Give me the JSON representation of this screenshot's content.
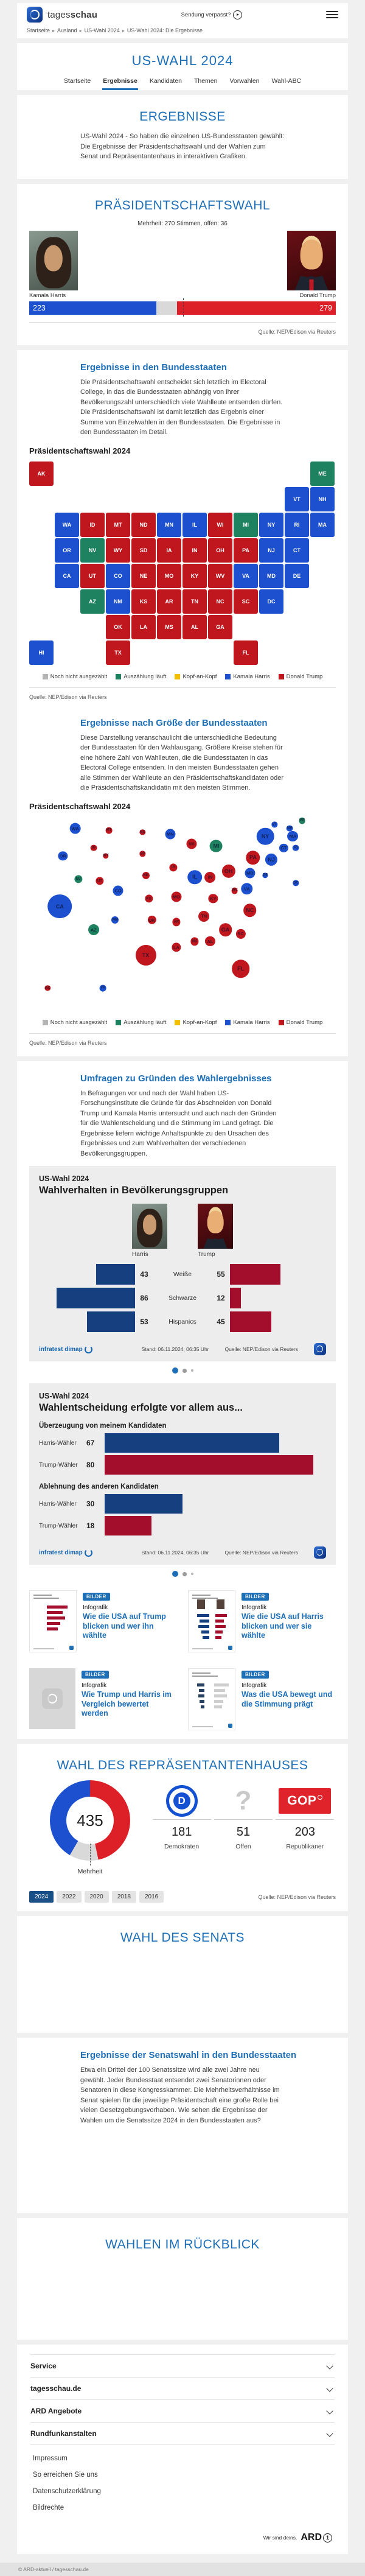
{
  "colors": {
    "dem": "#1c50cf",
    "rep": "#c0161e",
    "rep_bright": "#dd2028",
    "counting": "#1e8160",
    "open_gray": "#b5b5b5",
    "tie": "#f3c000",
    "chart_dem": "#153f7f",
    "chart_rep": "#a40e2d",
    "accent": "#1d6fb8"
  },
  "header": {
    "brand_light": "tages",
    "brand_bold": "schau",
    "link_label": "Sendung verpasst?"
  },
  "breadcrumb": [
    "Startseite",
    "Ausland",
    "US-Wahl 2024",
    "US-Wahl 2024: Die Ergebnisse"
  ],
  "hero": {
    "title": "US-WAHL 2024",
    "tabs": [
      {
        "label": "Startseite",
        "active": false
      },
      {
        "label": "Ergebnisse",
        "active": true
      },
      {
        "label": "Kandidaten",
        "active": false
      },
      {
        "label": "Themen",
        "active": false
      },
      {
        "label": "Vorwahlen",
        "active": false
      },
      {
        "label": "Wahl-ABC",
        "active": false
      }
    ]
  },
  "intro": {
    "title": "ERGEBNISSE",
    "text": "US-Wahl 2024 - So haben die einzelnen US-Bundesstaaten gewählt: Die Ergebnisse der Präsidentschaftswahl und der Wahlen zum Senat und Repräsentantenhaus in interaktiven Grafiken."
  },
  "president": {
    "title": "PRÄSIDENTSCHAFTSWAHL",
    "majority_label": "Mehrheit: 270 Stimmen, offen: 36",
    "harris_name": "Kamala Harris",
    "trump_name": "Donald Trump",
    "source": "Quelle: NEP/Edison via Reuters"
  },
  "states_section": {
    "heading": "Ergebnisse in den Bundesstaaten",
    "text": "Die Präsidentschaftswahl entscheidet sich letztlich im Electoral College, in das die Bundesstaaten abhängig von ihrer Bevölkerungszahl unterschiedlich viele Wahlleute entsenden dürfen. Die Präsidentschaftswahl ist damit letztlich das Ergebnis einer Summe von Einzelwahlen in den Bundesstaaten. Die Ergebnisse in den Bundesstaaten im Detail.",
    "chart_label": "Präsidentschaftswahl 2024",
    "source": "Quelle: NEP/Edison via Reuters"
  },
  "size_section": {
    "heading": "Ergebnisse nach Größe der Bundesstaaten",
    "text": "Diese Darstellung veranschaulicht die unterschiedliche Bedeutung der Bundesstaaten für den Wahlausgang. Größere Kreise stehen für eine höhere Zahl von Wahlleuten, die die Bundesstaaten in das Electoral College entsenden. In den meisten Bundesstaaten gehen alle Stimmen der Wahlleute an den Präsidentschaftskandidaten oder die Präsidentschaftskandidatin mit den meisten Stimmen.",
    "chart_label": "Präsidentschaftswahl 2024",
    "source": "Quelle: NEP/Edison via Reuters"
  },
  "legend": [
    {
      "label": "Noch nicht ausgezählt",
      "key": "open_gray"
    },
    {
      "label": "Auszählung läuft",
      "key": "counting"
    },
    {
      "label": "Kopf-an-Kopf",
      "key": "tie"
    },
    {
      "label": "Kamala Harris",
      "key": "dem"
    },
    {
      "label": "Donald Trump",
      "key": "rep"
    }
  ],
  "polls_section": {
    "heading": "Umfragen zu Gründen des Wahlergebnisses",
    "text": "In Befragungen vor und nach der Wahl haben US-Forschungsinstitute die Gründe für das Abschneiden von Donald Trump und Kamala Harris untersucht und auch nach den Gründen für die Wahlentscheidung und die Stimmung im Land gefragt. Die Ergebnisse liefern wichtige Anhaltspunkte zu den Ursachen des Ergebnisses und zum Wahlverhalten der verschiedenen Bevölkerungsgruppen."
  },
  "charts_common": {
    "kicker": "US-Wahl 2024",
    "brand": "infratest dimap",
    "stand": "Stand:  06.11.2024, 06:35 Uhr",
    "source": "Quelle: NEP/Edison via Reuters"
  },
  "teasers": [
    {
      "badge": "BILDER",
      "kicker": "Infografik",
      "title": "Wie die USA auf Trump blicken und wer ihn wählte",
      "thumb": "trump-profile"
    },
    {
      "badge": "BILDER",
      "kicker": "Infografik",
      "title": "Wie die USA auf Harris blicken und wer sie wählte",
      "thumb": "compare"
    },
    {
      "badge": "BILDER",
      "kicker": "Infografik",
      "title": "Wie Trump und Harris im Vergleich bewertet werden",
      "thumb": "placeholder"
    },
    {
      "badge": "BILDER",
      "kicker": "Infografik",
      "title": "Was die USA bewegt und die Stimmung prägt",
      "thumb": "mood"
    }
  ],
  "house": {
    "title": "WAHL DES REPRÄSENTANTENHAUSES",
    "majority_label": "Mehrheit",
    "years": [
      "2024",
      "2022",
      "2020",
      "2018",
      "2016"
    ],
    "active_year": "2024",
    "source": "Quelle: NEP/Edison via Reuters"
  },
  "senate": {
    "title": "WAHL DES SENATS"
  },
  "senate_states": {
    "heading": "Ergebnisse der Senatswahl in den Bundesstaaten",
    "text": "Etwa ein Drittel der 100 Senatssitze wird alle zwei Jahre neu gewählt. Jeder Bundesstaat entsendet zwei Senatorinnen oder Senatoren in diese Kongresskammer. Die Mehrheitsverhältnisse im Senat spielen für die jeweilige Präsidentschaft eine große Rolle bei vielen Gesetzgebungsvorhaben. Wie sehen die Ergebnisse der Wahlen um die Senatssitze 2024 in den Bundesstaaten aus?"
  },
  "review": {
    "title": "WAHLEN IM RÜCKBLICK"
  },
  "footer": {
    "accordions": [
      "Service",
      "tagesschau.de",
      "ARD Angebote",
      "Rundfunkanstalten"
    ],
    "links": [
      "Impressum",
      "So erreichen Sie uns",
      "Datenschutzerklärung",
      "Bildrechte"
    ],
    "tagline": "Wir sind deins.",
    "brand": "ARD",
    "copyright": "© ARD-aktuell / tagesschau.de"
  },
  "chart_data": {
    "electoral_college": {
      "type": "bar",
      "title": "Präsidentschaftswahl 2024",
      "series": [
        {
          "name": "Kamala Harris",
          "value": 223,
          "color": "dem"
        },
        {
          "name": "Donald Trump",
          "value": 279,
          "color": "rep_bright"
        }
      ],
      "open": 36,
      "total": 538,
      "majority": 270
    },
    "state_results": {
      "type": "map",
      "legend": [
        "Noch nicht ausgezählt",
        "Auszählung läuft",
        "Kopf-an-Kopf",
        "Kamala Harris",
        "Donald Trump"
      ],
      "states": [
        {
          "code": "AK",
          "ev": 3,
          "result": "rep",
          "grid": [
            0,
            0
          ],
          "pos": [
            6,
            88
          ]
        },
        {
          "code": "ME",
          "ev": 4,
          "result": "counting",
          "grid": [
            11,
            0
          ],
          "pos": [
            89,
            2
          ]
        },
        {
          "code": "VT",
          "ev": 3,
          "result": "dem",
          "grid": [
            10,
            1
          ],
          "pos": [
            80,
            4
          ]
        },
        {
          "code": "NH",
          "ev": 4,
          "result": "dem",
          "grid": [
            11,
            1
          ],
          "pos": [
            85,
            6
          ]
        },
        {
          "code": "WA",
          "ev": 12,
          "result": "dem",
          "grid": [
            1,
            2
          ],
          "pos": [
            15,
            6
          ]
        },
        {
          "code": "ID",
          "ev": 4,
          "result": "rep",
          "grid": [
            2,
            2
          ],
          "pos": [
            21,
            16
          ]
        },
        {
          "code": "MT",
          "ev": 4,
          "result": "rep",
          "grid": [
            3,
            2
          ],
          "pos": [
            26,
            7
          ]
        },
        {
          "code": "ND",
          "ev": 3,
          "result": "rep",
          "grid": [
            4,
            2
          ],
          "pos": [
            37,
            8
          ]
        },
        {
          "code": "MN",
          "ev": 10,
          "result": "dem",
          "grid": [
            5,
            2
          ],
          "pos": [
            46,
            9
          ]
        },
        {
          "code": "IL",
          "ev": 19,
          "result": "dem",
          "grid": [
            6,
            2
          ],
          "pos": [
            54,
            31
          ]
        },
        {
          "code": "WI",
          "ev": 10,
          "result": "rep",
          "grid": [
            7,
            2
          ],
          "pos": [
            53,
            14
          ]
        },
        {
          "code": "MI",
          "ev": 15,
          "result": "counting",
          "grid": [
            8,
            2
          ],
          "pos": [
            61,
            15
          ]
        },
        {
          "code": "NY",
          "ev": 28,
          "result": "dem",
          "grid": [
            9,
            2
          ],
          "pos": [
            77,
            10
          ]
        },
        {
          "code": "RI",
          "ev": 4,
          "result": "dem",
          "grid": [
            10,
            2
          ],
          "pos": [
            87,
            16
          ]
        },
        {
          "code": "MA",
          "ev": 11,
          "result": "dem",
          "grid": [
            11,
            2
          ],
          "pos": [
            86,
            10
          ]
        },
        {
          "code": "OR",
          "ev": 8,
          "result": "dem",
          "grid": [
            1,
            3
          ],
          "pos": [
            11,
            20
          ]
        },
        {
          "code": "NV",
          "ev": 6,
          "result": "counting",
          "grid": [
            2,
            3
          ],
          "pos": [
            16,
            32
          ]
        },
        {
          "code": "WY",
          "ev": 3,
          "result": "rep",
          "grid": [
            3,
            3
          ],
          "pos": [
            25,
            20
          ]
        },
        {
          "code": "SD",
          "ev": 3,
          "result": "rep",
          "grid": [
            4,
            3
          ],
          "pos": [
            37,
            19
          ]
        },
        {
          "code": "IA",
          "ev": 6,
          "result": "rep",
          "grid": [
            5,
            3
          ],
          "pos": [
            47,
            26
          ]
        },
        {
          "code": "IN",
          "ev": 11,
          "result": "rep",
          "grid": [
            6,
            3
          ],
          "pos": [
            59,
            31
          ]
        },
        {
          "code": "OH",
          "ev": 17,
          "result": "rep",
          "grid": [
            7,
            3
          ],
          "pos": [
            65,
            28
          ]
        },
        {
          "code": "PA",
          "ev": 19,
          "result": "rep",
          "grid": [
            8,
            3
          ],
          "pos": [
            73,
            21
          ]
        },
        {
          "code": "NJ",
          "ev": 14,
          "result": "dem",
          "grid": [
            9,
            3
          ],
          "pos": [
            79,
            22
          ]
        },
        {
          "code": "CT",
          "ev": 7,
          "result": "dem",
          "grid": [
            10,
            3
          ],
          "pos": [
            83,
            16
          ]
        },
        {
          "code": "CA",
          "ev": 54,
          "result": "dem",
          "grid": [
            1,
            4
          ],
          "pos": [
            10,
            46
          ]
        },
        {
          "code": "UT",
          "ev": 6,
          "result": "rep",
          "grid": [
            2,
            4
          ],
          "pos": [
            23,
            33
          ]
        },
        {
          "code": "CO",
          "ev": 10,
          "result": "dem",
          "grid": [
            3,
            4
          ],
          "pos": [
            29,
            38
          ]
        },
        {
          "code": "NE",
          "ev": 5,
          "result": "rep",
          "grid": [
            4,
            4
          ],
          "pos": [
            38,
            30
          ]
        },
        {
          "code": "MO",
          "ev": 10,
          "result": "rep",
          "grid": [
            5,
            4
          ],
          "pos": [
            48,
            41
          ]
        },
        {
          "code": "KY",
          "ev": 8,
          "result": "rep",
          "grid": [
            6,
            4
          ],
          "pos": [
            60,
            42
          ]
        },
        {
          "code": "WV",
          "ev": 4,
          "result": "rep",
          "grid": [
            7,
            4
          ],
          "pos": [
            67,
            38
          ]
        },
        {
          "code": "VA",
          "ev": 13,
          "result": "dem",
          "grid": [
            8,
            4
          ],
          "pos": [
            71,
            37
          ]
        },
        {
          "code": "MD",
          "ev": 10,
          "result": "dem",
          "grid": [
            9,
            4
          ],
          "pos": [
            72,
            29
          ]
        },
        {
          "code": "DE",
          "ev": 3,
          "result": "dem",
          "grid": [
            10,
            4
          ],
          "pos": [
            77,
            30
          ]
        },
        {
          "code": "AZ",
          "ev": 11,
          "result": "counting",
          "grid": [
            2,
            5
          ],
          "pos": [
            21,
            58
          ]
        },
        {
          "code": "NM",
          "ev": 5,
          "result": "dem",
          "grid": [
            3,
            5
          ],
          "pos": [
            28,
            53
          ]
        },
        {
          "code": "KS",
          "ev": 6,
          "result": "rep",
          "grid": [
            4,
            5
          ],
          "pos": [
            39,
            42
          ]
        },
        {
          "code": "AR",
          "ev": 6,
          "result": "rep",
          "grid": [
            5,
            5
          ],
          "pos": [
            48,
            54
          ]
        },
        {
          "code": "TN",
          "ev": 11,
          "result": "rep",
          "grid": [
            6,
            5
          ],
          "pos": [
            57,
            51
          ]
        },
        {
          "code": "NC",
          "ev": 16,
          "result": "rep",
          "grid": [
            7,
            5
          ],
          "pos": [
            72,
            48
          ]
        },
        {
          "code": "SC",
          "ev": 9,
          "result": "rep",
          "grid": [
            8,
            5
          ],
          "pos": [
            69,
            60
          ]
        },
        {
          "code": "DC",
          "ev": 3,
          "result": "dem",
          "grid": [
            9,
            5
          ],
          "pos": [
            87,
            34
          ]
        },
        {
          "code": "OK",
          "ev": 7,
          "result": "rep",
          "grid": [
            3,
            6
          ],
          "pos": [
            40,
            53
          ]
        },
        {
          "code": "LA",
          "ev": 8,
          "result": "rep",
          "grid": [
            4,
            6
          ],
          "pos": [
            48,
            67
          ]
        },
        {
          "code": "MS",
          "ev": 6,
          "result": "rep",
          "grid": [
            5,
            6
          ],
          "pos": [
            54,
            64
          ]
        },
        {
          "code": "AL",
          "ev": 9,
          "result": "rep",
          "grid": [
            6,
            6
          ],
          "pos": [
            59,
            64
          ]
        },
        {
          "code": "GA",
          "ev": 16,
          "result": "rep",
          "grid": [
            7,
            6
          ],
          "pos": [
            64,
            58
          ]
        },
        {
          "code": "HI",
          "ev": 4,
          "result": "dem",
          "grid": [
            0,
            7
          ],
          "pos": [
            24,
            88
          ]
        },
        {
          "code": "TX",
          "ev": 40,
          "result": "rep",
          "grid": [
            3,
            7
          ],
          "pos": [
            38,
            71
          ]
        },
        {
          "code": "FL",
          "ev": 30,
          "result": "rep",
          "grid": [
            8,
            7
          ],
          "pos": [
            69,
            78
          ]
        }
      ]
    },
    "demographics": {
      "type": "bar",
      "title": "Wahlverhalten in Bevölkerungsgruppen",
      "candidates": [
        "Harris",
        "Trump"
      ],
      "categories": [
        "Weiße",
        "Schwarze",
        "Hispanics"
      ],
      "series": [
        {
          "name": "Harris",
          "values": [
            43,
            86,
            53
          ]
        },
        {
          "name": "Trump",
          "values": [
            55,
            12,
            45
          ]
        }
      ]
    },
    "decision": {
      "type": "bar",
      "title": "Wahlentscheidung erfolgte vor allem aus...",
      "groups": [
        {
          "label": "Überzeugung von meinem Kandidaten",
          "rows": [
            {
              "label": "Harris-Wähler",
              "value": 67,
              "color": "chart_dem"
            },
            {
              "label": "Trump-Wähler",
              "value": 80,
              "color": "chart_rep"
            }
          ]
        },
        {
          "label": "Ablehnung des anderen Kandidaten",
          "rows": [
            {
              "label": "Harris-Wähler",
              "value": 30,
              "color": "chart_dem"
            },
            {
              "label": "Trump-Wähler",
              "value": 18,
              "color": "chart_rep"
            }
          ]
        }
      ]
    },
    "house": {
      "type": "pie",
      "total": 435,
      "slices": [
        {
          "label": "Demokraten",
          "value": 181,
          "color": "dem",
          "logo": "dem"
        },
        {
          "label": "Offen",
          "value": 51,
          "color": "open_gray",
          "logo": "question"
        },
        {
          "label": "Republikaner",
          "value": 203,
          "color": "rep_bright",
          "logo": "gop"
        }
      ]
    }
  }
}
